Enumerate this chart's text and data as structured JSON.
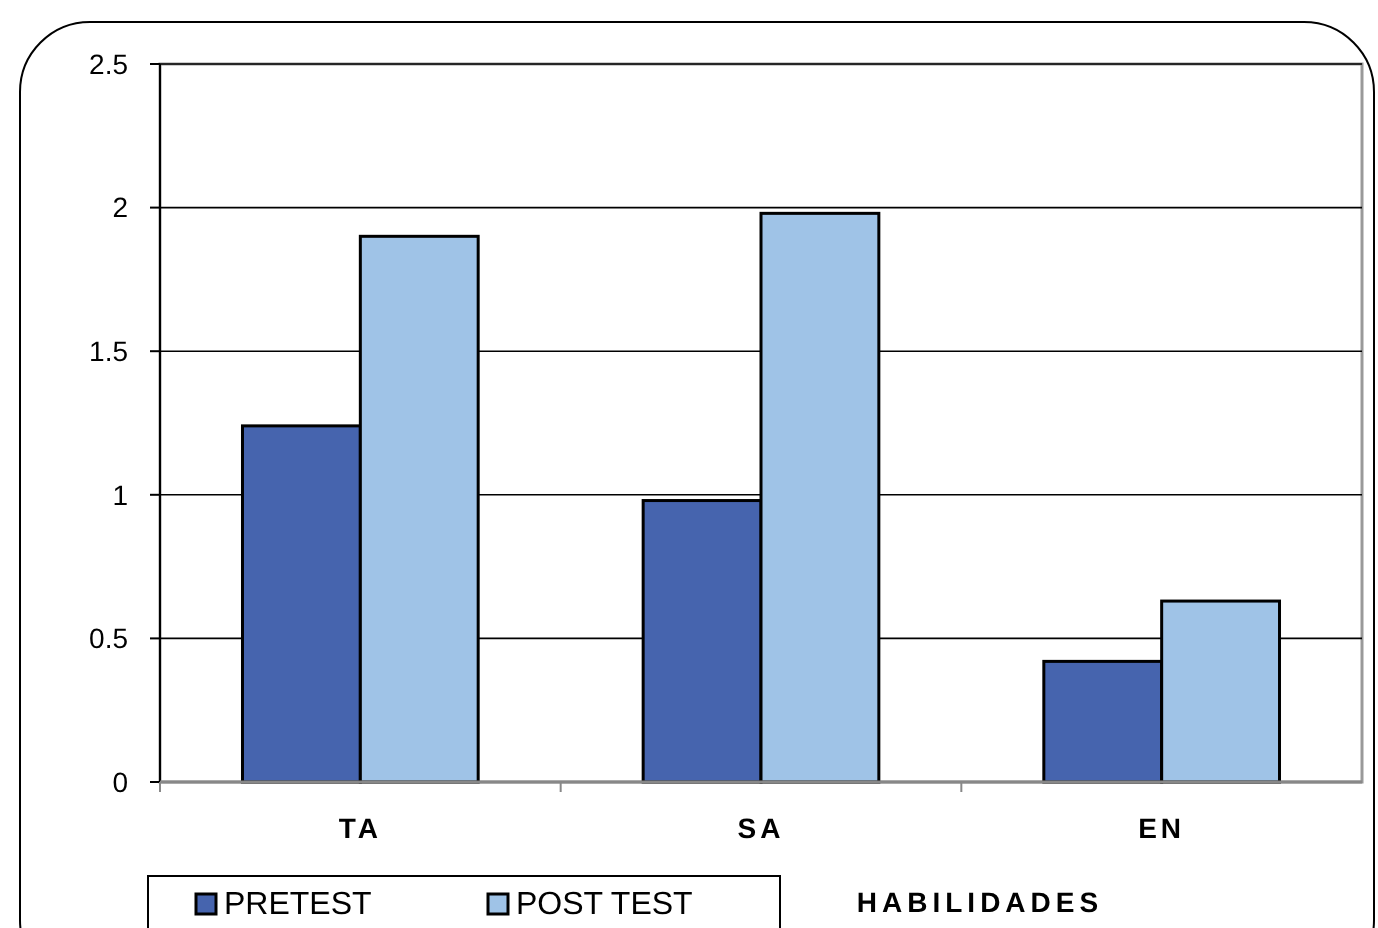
{
  "chart_data": {
    "type": "bar",
    "xlabel": "HABILIDADES",
    "categories": [
      "TA",
      "SA",
      "EN"
    ],
    "series": [
      {
        "name": "PRETEST",
        "color": "#4664ae",
        "values": [
          1.24,
          0.98,
          0.42
        ]
      },
      {
        "name": "POST TEST",
        "color": "#9fc3e7",
        "values": [
          1.9,
          1.98,
          0.63
        ]
      }
    ],
    "ylim": [
      0,
      2.5
    ],
    "yticks": [
      0,
      0.5,
      1,
      1.5,
      2,
      2.5
    ],
    "grid": "y",
    "legend": "bottom left"
  }
}
